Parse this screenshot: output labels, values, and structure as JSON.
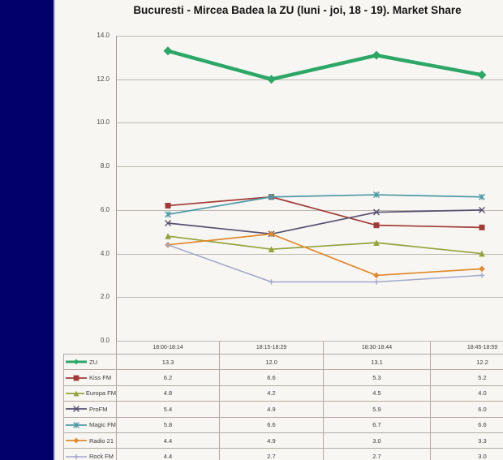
{
  "chart_data": {
    "type": "line",
    "title": "Bucuresti - Mircea Badea la ZU (luni - joi, 18 - 19). Market Share",
    "categories": [
      "18:00-18:14",
      "18:15-18:29",
      "18:30-18:44",
      "18:45-18:59"
    ],
    "series": [
      {
        "name": "ZU",
        "values": [
          13.3,
          12.0,
          13.1,
          12.2
        ],
        "color": "#2ca767",
        "marker": "diamond",
        "line_width": 4.5,
        "marker_size": 5.5
      },
      {
        "name": "Kiss FM",
        "values": [
          6.2,
          6.6,
          5.3,
          5.2
        ],
        "color": "#a23a37",
        "marker": "square",
        "line_width": 1.7,
        "marker_size": 3.5
      },
      {
        "name": "Europa FM",
        "values": [
          4.8,
          4.2,
          4.5,
          4.0
        ],
        "color": "#94a23d",
        "marker": "triangle",
        "line_width": 1.7,
        "marker_size": 3.8
      },
      {
        "name": "ProFM",
        "values": [
          5.4,
          4.9,
          5.9,
          6.0
        ],
        "color": "#585070",
        "marker": "x",
        "line_width": 1.7,
        "marker_size": 3.5
      },
      {
        "name": "Magic FM",
        "values": [
          5.8,
          6.6,
          6.7,
          6.6
        ],
        "color": "#4f9aa8",
        "marker": "star",
        "line_width": 1.7,
        "marker_size": 3.5
      },
      {
        "name": "Radio 21",
        "values": [
          4.4,
          4.9,
          3.0,
          3.3
        ],
        "color": "#e08a2d",
        "marker": "diamond",
        "line_width": 1.7,
        "marker_size": 3.8
      },
      {
        "name": "Rock FM",
        "values": [
          4.4,
          2.7,
          2.7,
          3.0
        ],
        "color": "#a2a7c9",
        "marker": "plus",
        "line_width": 1.5,
        "marker_size": 3.2
      }
    ],
    "ylim": [
      0,
      14
    ],
    "yticks": [
      14,
      12,
      10,
      8,
      6,
      4,
      2,
      0
    ],
    "ytick_format": "one_decimal",
    "grid": true,
    "legend_position": "left-column-of-data-table",
    "colors": {
      "grid": "#c0b7ae",
      "axis": "#a39a91",
      "background": "#f8f6f2",
      "sidebar": "#02016b",
      "sidebar_edge": "#b9b7e0",
      "table_border": "#b3aaa2",
      "text": "#3b3b3b",
      "title": "#141414"
    }
  }
}
